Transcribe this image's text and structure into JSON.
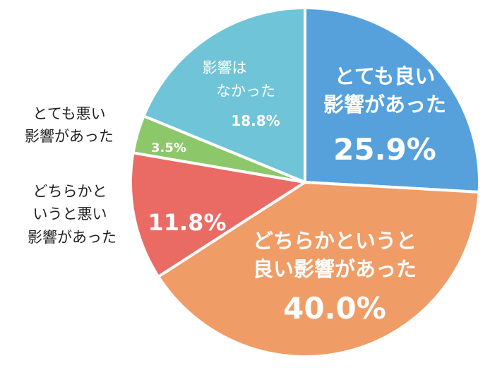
{
  "chart_data": {
    "type": "pie",
    "slices": [
      {
        "id": "very-positive",
        "lines": [
          "とても良い",
          "影響があった"
        ],
        "value": 25.9,
        "value_label": "25.9%",
        "color": "#56a0db"
      },
      {
        "id": "somewhat-positive",
        "lines": [
          "どちらかというと",
          "良い影響があった"
        ],
        "value": 40.0,
        "value_label": "40.0%",
        "color": "#f09c66"
      },
      {
        "id": "somewhat-negative",
        "lines": [
          "どちらかと",
          "いうと悪い",
          "影響があった"
        ],
        "value": 11.8,
        "value_label": "11.8%",
        "color": "#e96b64"
      },
      {
        "id": "very-negative",
        "lines": [
          "とても悪い",
          "影響があった"
        ],
        "value": 3.5,
        "value_label": "3.5%",
        "color": "#8cc76a"
      },
      {
        "id": "no-effect",
        "lines": [
          "影響は",
          "なかった"
        ],
        "value": 18.8,
        "value_label": "18.8%",
        "color": "#6fc4d8"
      }
    ]
  }
}
